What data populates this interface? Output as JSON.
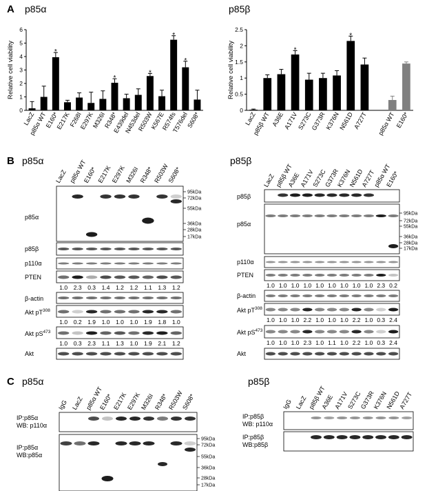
{
  "panels": {
    "A": {
      "letter": "A",
      "left_title": "p85α",
      "right_title": "p85β"
    },
    "B": {
      "letter": "B",
      "left_title": "p85α",
      "right_title": "p85β"
    },
    "C": {
      "letter": "C",
      "left_title": "p85α",
      "right_title": "p85β"
    }
  },
  "chart_data": [
    {
      "type": "bar",
      "panel": "A-left",
      "ylabel": "Relative cell viability",
      "ylim": [
        0,
        6
      ],
      "yticks": [
        "0",
        "1",
        "2",
        "3",
        "4",
        "5",
        "6"
      ],
      "categories": [
        "LacZ",
        "p85α WT",
        "E160*",
        "E217K",
        "F268I",
        "E297K",
        "M326I",
        "R348*",
        "E439del",
        "N453del",
        "R503W",
        "K567E",
        "R574fs",
        "T576del",
        "S608*"
      ],
      "values": [
        0.15,
        1.0,
        3.95,
        0.6,
        0.95,
        0.55,
        0.85,
        2.05,
        0.9,
        1.15,
        2.55,
        1.05,
        5.25,
        3.2,
        0.8
      ],
      "errors": [
        0.5,
        0.8,
        0.35,
        0.15,
        0.35,
        0.8,
        0.6,
        0.3,
        0.3,
        0.45,
        0.2,
        0.45,
        0.3,
        0.45,
        0.7
      ],
      "significant": [
        false,
        false,
        true,
        false,
        false,
        false,
        false,
        true,
        false,
        false,
        true,
        false,
        true,
        true,
        false
      ],
      "bar_color": "#000000"
    },
    {
      "type": "bar",
      "panel": "A-right",
      "ylabel": "Relative cell viability",
      "ylim": [
        0,
        2.5
      ],
      "yticks": [
        "0",
        "0.5",
        "1",
        "1.5",
        "2",
        "2.5"
      ],
      "categories": [
        "LacZ",
        "p85β WT",
        "A36E",
        "A171V",
        "S273C",
        "G373R",
        "K376N",
        "N561D",
        "A727T",
        "",
        "p85α WT",
        "E160*"
      ],
      "values": [
        0.02,
        1.0,
        1.12,
        1.73,
        0.95,
        1.0,
        1.08,
        2.15,
        1.42,
        null,
        0.32,
        1.45
      ],
      "errors": [
        0.02,
        0.1,
        0.15,
        0.12,
        0.2,
        0.15,
        0.15,
        0.15,
        0.2,
        null,
        0.12,
        0.05
      ],
      "significant": [
        false,
        false,
        false,
        true,
        false,
        false,
        false,
        true,
        false,
        false,
        false,
        false
      ],
      "bar_colors": [
        "#000000",
        "#000000",
        "#000000",
        "#000000",
        "#000000",
        "#000000",
        "#000000",
        "#000000",
        "#000000",
        "#000000",
        "#808080",
        "#808080"
      ]
    }
  ],
  "blots": {
    "B_left": {
      "lanes": [
        "LacZ",
        "p85α WT",
        "E160*",
        "E217K",
        "E297K",
        "M326I",
        "R348*",
        "R503W",
        "S608*"
      ],
      "markers": [
        "95kDa",
        "72kDa",
        "55kDa",
        "36kDa",
        "28kDa",
        "17kDa"
      ],
      "labels": {
        "p85a": "p85α",
        "p85b": "p85β",
        "p110a": "p110α",
        "pten": "PTEN",
        "actin": "β-actin",
        "akt_t308_main": "Akt pT",
        "akt_t308_sup": "308",
        "akt_s473_main": "Akt pS",
        "akt_s473_sup": "473",
        "akt": "Akt"
      },
      "pten_quant": [
        "1.0",
        "2.3",
        "0.3",
        "1.4",
        "1.2",
        "1.2",
        "1.1",
        "1.3",
        "1.2"
      ],
      "t308_quant": [
        "1.0",
        "0.2",
        "1.9",
        "1.0",
        "1.0",
        "1.0",
        "1.9",
        "1.8",
        "1.0"
      ],
      "s473_quant": [
        "1.0",
        "0.3",
        "2.3",
        "1.1",
        "1.3",
        "1.0",
        "1.9",
        "2.1",
        "1.2"
      ]
    },
    "B_right": {
      "lanes": [
        "LacZ",
        "p85β WT",
        "A36E",
        "A171V",
        "S273C",
        "G373R",
        "K376N",
        "N561D",
        "A727T",
        "p85α WT",
        "E160*"
      ],
      "markers": [
        "95kDa",
        "72kDa",
        "55kDa",
        "36kDa",
        "28kDa",
        "17kDa"
      ],
      "labels": {
        "p85b": "p85β",
        "p85a": "p85α",
        "p110a": "p110α",
        "pten": "PTEN",
        "actin": "β-actin",
        "akt_t308_main": "Akt pT",
        "akt_t308_sup": "308",
        "akt_s473_main": "Akt pS",
        "akt_s473_sup": "473",
        "akt": "Akt"
      },
      "pten_quant": [
        "1.0",
        "1.0",
        "1.0",
        "1.0",
        "1.0",
        "1.0",
        "1.0",
        "1.0",
        "1.0",
        "2.3",
        "0.2"
      ],
      "t308_quant": [
        "1.0",
        "1.0",
        "1.0",
        "2.2",
        "1.0",
        "1.0",
        "1.0",
        "2.2",
        "1.0",
        "0.3",
        "2.4"
      ],
      "s473_quant": [
        "1.0",
        "1.0",
        "1.0",
        "2.3",
        "1.0",
        "1.1",
        "1.0",
        "2.2",
        "1.0",
        "0.3",
        "2.4"
      ]
    },
    "C_left": {
      "lanes": [
        "IgG",
        "LacZ",
        "p85α WT",
        "E160*",
        "E217K",
        "E297K",
        "M326I",
        "R348*",
        "R503W",
        "S608*"
      ],
      "markers": [
        "95kDa",
        "72kDa",
        "55kDa",
        "36kDa",
        "28kDa",
        "17kDa"
      ],
      "ip1_line1": "IP:p85α",
      "ip1_line2": "WB: p110α",
      "ip2_line1": "IP:p85α",
      "ip2_line2": "WB:p85α"
    },
    "C_right": {
      "lanes": [
        "IgG",
        "LacZ",
        "p85β WT",
        "A36E",
        "A171V",
        "S273C",
        "G373R",
        "K376N",
        "N561D",
        "A727T"
      ],
      "ip1_line1": "IP:p85β",
      "ip1_line2": "WB: p110α",
      "ip2_line1": "IP:p85β",
      "ip2_line2": "WB:p85β"
    }
  }
}
